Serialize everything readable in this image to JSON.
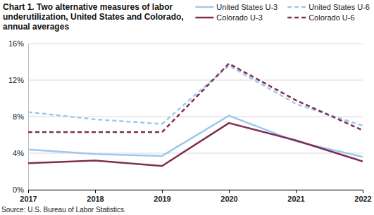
{
  "chart_data": {
    "type": "line",
    "title": "Chart 1. Two alternative measures of labor underutilization, United States and Colorado, annual averages",
    "source": "Source: U.S. Bureau of Labor Statistics.",
    "x": [
      2017,
      2018,
      2019,
      2020,
      2021,
      2022
    ],
    "xlim": [
      2017,
      2022
    ],
    "xticks": [
      2017,
      2018,
      2019,
      2020,
      2021,
      2022
    ],
    "ylim": [
      0,
      16
    ],
    "yticks": [
      {
        "value": 0,
        "label": "0%"
      },
      {
        "value": 4,
        "label": "4%"
      },
      {
        "value": 8,
        "label": "8%"
      },
      {
        "value": 12,
        "label": "12%"
      },
      {
        "value": 16,
        "label": "16%"
      }
    ],
    "grid": true,
    "legend": "top-right",
    "series": [
      {
        "name": "United States U-3",
        "color": "#9dc8ee",
        "line_style": "solid",
        "values": [
          4.4,
          3.9,
          3.7,
          8.1,
          5.3,
          3.6
        ]
      },
      {
        "name": "United States U-6",
        "color": "#9dc8ee",
        "line_style": "dashed",
        "values": [
          8.5,
          7.7,
          7.2,
          13.6,
          9.4,
          7.0
        ]
      },
      {
        "name": "Colorado U-3",
        "color": "#7f2d55",
        "line_style": "solid",
        "values": [
          2.9,
          3.2,
          2.6,
          7.3,
          5.4,
          3.1
        ]
      },
      {
        "name": "Colorado U-6",
        "color": "#7f2d55",
        "line_style": "dashed",
        "values": [
          6.3,
          6.3,
          6.3,
          13.8,
          9.8,
          6.5
        ]
      }
    ]
  }
}
